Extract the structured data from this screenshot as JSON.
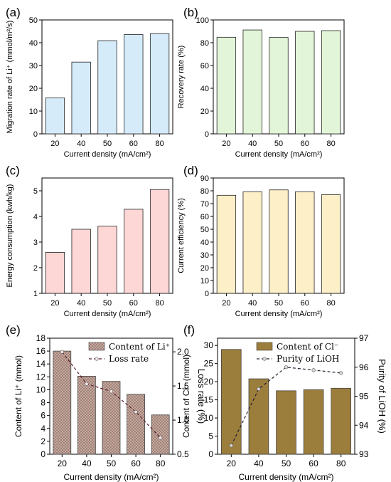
{
  "chart_data": [
    {
      "panel": "(a)",
      "type": "bar",
      "categories": [
        "20",
        "40",
        "50",
        "60",
        "80"
      ],
      "values": [
        15.8,
        31.5,
        40.9,
        43.6,
        44.0
      ],
      "xlabel": "Current density (mA/cm²)",
      "ylabel": "Migration rate of Li⁺ (mmol/m²/s)",
      "ylim": [
        0,
        50
      ],
      "yticks": [
        "0",
        "10",
        "20",
        "30",
        "40",
        "50"
      ],
      "colors": {
        "fill": "#d5ebfa",
        "stroke": "#222222"
      }
    },
    {
      "panel": "(b)",
      "type": "bar",
      "categories": [
        "20",
        "40",
        "50",
        "60",
        "80"
      ],
      "values": [
        84.8,
        91.2,
        84.6,
        90.0,
        90.6
      ],
      "xlabel": "Current density (mA/cm²)",
      "ylabel": "Recovery rate (%)",
      "ylim": [
        0,
        100
      ],
      "yticks": [
        "0",
        "20",
        "40",
        "60",
        "80",
        "100"
      ],
      "colors": {
        "fill": "#e3f5d8",
        "stroke": "#222222"
      }
    },
    {
      "panel": "(c)",
      "type": "bar",
      "categories": [
        "20",
        "40",
        "50",
        "60",
        "80"
      ],
      "values": [
        2.6,
        3.5,
        3.62,
        4.28,
        5.05
      ],
      "xlabel": "Current density (mA/cm²)",
      "ylabel": "Energy consumption (kwh/kg)",
      "ylim": [
        1,
        5.5
      ],
      "yticks": [
        "1",
        "2",
        "3",
        "4",
        "5"
      ],
      "colors": {
        "fill": "#fdd6d6",
        "stroke": "#222222"
      }
    },
    {
      "panel": "(d)",
      "type": "bar",
      "categories": [
        "20",
        "40",
        "50",
        "60",
        "80"
      ],
      "values": [
        76.5,
        79.3,
        80.7,
        79.3,
        77.0
      ],
      "xlabel": "Current density (mA/cm²)",
      "ylabel": "Current efficiency (%)",
      "ylim": [
        0,
        90
      ],
      "yticks": [
        "0",
        "10",
        "20",
        "30",
        "40",
        "50",
        "60",
        "70",
        "80",
        "90"
      ],
      "colors": {
        "fill": "#fdefc8",
        "stroke": "#222222"
      }
    },
    {
      "panel": "(e)",
      "type": "bar",
      "categories": [
        "20",
        "40",
        "50",
        "60",
        "80"
      ],
      "series": [
        {
          "name": "Content of Li⁺",
          "type": "bar",
          "axis": "left",
          "values": [
            16.0,
            12.1,
            11.3,
            9.3,
            6.1
          ]
        },
        {
          "name": "Loss rate",
          "type": "line",
          "axis": "right",
          "values": [
            2.0,
            1.53,
            1.42,
            1.12,
            0.74
          ]
        }
      ],
      "xlabel": "Current density (mA/cm²)",
      "ylabel": "Content of Li⁺ (mmol)",
      "ylabel_right": "Loss rate (%)",
      "ylim": [
        0,
        18
      ],
      "ylim_right": [
        0.5,
        2.2
      ],
      "yticks": [
        "0",
        "2",
        "4",
        "6",
        "8",
        "10",
        "12",
        "14",
        "16",
        "18"
      ],
      "yticks_right": [
        "0.5",
        "1.0",
        "1.5",
        "2.0"
      ],
      "legend": "top-right",
      "colors": {
        "bar": "#c9aea4",
        "hatch": "#8a6a60",
        "line": "#5a1a30",
        "marker_fill": "#f3e6e6"
      }
    },
    {
      "panel": "(f)",
      "type": "bar",
      "categories": [
        "20",
        "40",
        "50",
        "60",
        "80"
      ],
      "series": [
        {
          "name": "Content of Cl⁻",
          "type": "bar",
          "axis": "left",
          "values": [
            28.9,
            20.8,
            17.5,
            17.8,
            18.2
          ]
        },
        {
          "name": "Purity of LiOH",
          "type": "line",
          "axis": "right",
          "values": [
            93.3,
            95.25,
            96.0,
            95.9,
            95.8
          ]
        }
      ],
      "xlabel": "Current density (mA/cm²)",
      "ylabel": "Content of Cl⁻ (mmol)",
      "ylabel_right": "Purity of LiOH (%)",
      "ylim": [
        0,
        32
      ],
      "ylim_right": [
        93,
        97
      ],
      "yticks": [
        "0",
        "5",
        "10",
        "15",
        "20",
        "25",
        "30"
      ],
      "yticks_right": [
        "93",
        "94",
        "95",
        "96",
        "97"
      ],
      "legend": "top-right",
      "colors": {
        "bar": "#9c7e3c",
        "line": "#2a1a30",
        "marker_fill": "#d8d8d8"
      }
    }
  ]
}
